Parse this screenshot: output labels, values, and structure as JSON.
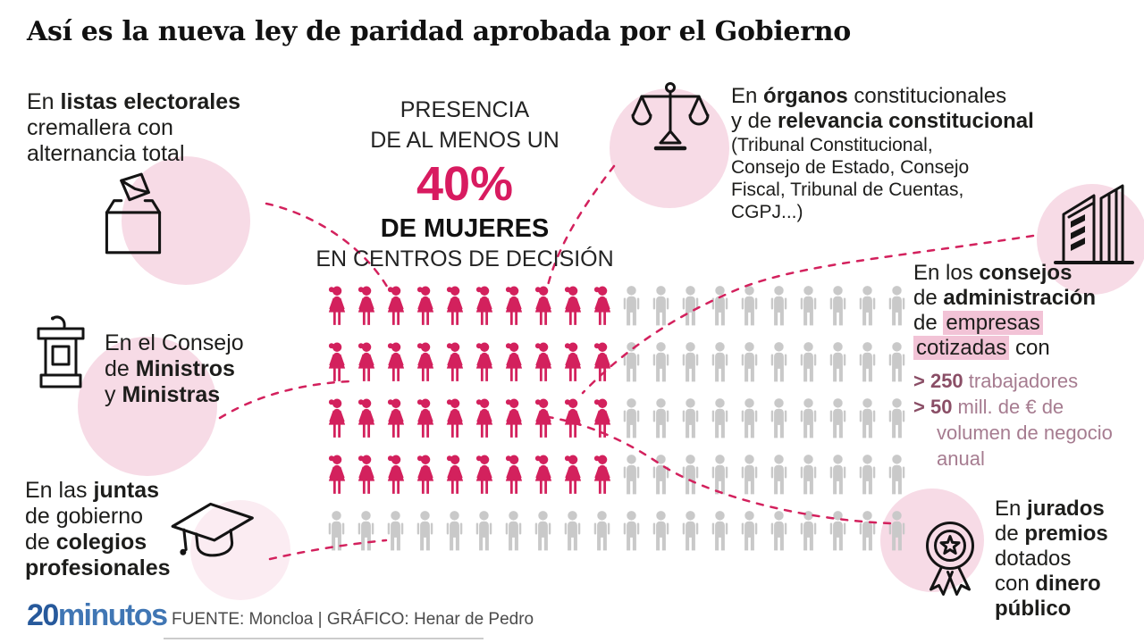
{
  "title": "Así es la nueva ley de paridad aprobada por el Gobierno",
  "center": {
    "line1": "PRESENCIA",
    "line2": "DE AL MENOS UN",
    "pct": "40%",
    "line3": "DE MUJERES",
    "line4": "EN CENTROS DE DECISIÓN"
  },
  "items": {
    "electoral": {
      "icon": "ballot-box",
      "lines": [
        {
          "seg": [
            {
              "t": "En "
            },
            {
              "t": "listas electorales",
              "c": "b"
            }
          ]
        },
        {
          "seg": [
            {
              "t": "cremallera con"
            }
          ]
        },
        {
          "seg": [
            {
              "t": "alternancia total"
            }
          ]
        }
      ]
    },
    "ministros": {
      "icon": "lectern",
      "lines": [
        {
          "seg": [
            {
              "t": "En el Consejo"
            }
          ]
        },
        {
          "seg": [
            {
              "t": "de "
            },
            {
              "t": "Ministros",
              "c": "b"
            }
          ]
        },
        {
          "seg": [
            {
              "t": "y "
            },
            {
              "t": "Ministras",
              "c": "b"
            }
          ]
        }
      ]
    },
    "juntas": {
      "icon": "graduation-cap",
      "lines": [
        {
          "seg": [
            {
              "t": "En las "
            },
            {
              "t": "juntas",
              "c": "b"
            }
          ]
        },
        {
          "seg": [
            {
              "t": "de gobierno"
            }
          ]
        },
        {
          "seg": [
            {
              "t": "de "
            },
            {
              "t": "colegios",
              "c": "b"
            }
          ]
        },
        {
          "seg": [
            {
              "t": "profesionales",
              "c": "b"
            }
          ]
        }
      ]
    },
    "organos": {
      "icon": "scales",
      "lines": [
        {
          "seg": [
            {
              "t": "En "
            },
            {
              "t": "órganos",
              "c": "b"
            },
            {
              "t": " constitucionales"
            }
          ]
        },
        {
          "seg": [
            {
              "t": "y de "
            },
            {
              "t": "relevancia constitucional",
              "c": "b"
            }
          ]
        },
        {
          "cls": "small",
          "seg": [
            {
              "t": "(Tribunal Constitucional,"
            }
          ]
        },
        {
          "cls": "small",
          "seg": [
            {
              "t": "Consejo de Estado, Consejo"
            }
          ]
        },
        {
          "cls": "small",
          "seg": [
            {
              "t": "Fiscal, Tribunal de Cuentas,"
            }
          ]
        },
        {
          "cls": "small",
          "seg": [
            {
              "t": "CGPJ...)"
            }
          ]
        }
      ]
    },
    "consejos": {
      "icon": "office-building",
      "lines": [
        {
          "seg": [
            {
              "t": "En los "
            },
            {
              "t": "consejos",
              "c": "b"
            }
          ]
        },
        {
          "seg": [
            {
              "t": "de "
            },
            {
              "t": "administración",
              "c": "b"
            }
          ]
        },
        {
          "seg": [
            {
              "t": "de "
            },
            {
              "t": "empresas",
              "c": "hl"
            }
          ]
        },
        {
          "seg": [
            {
              "t": "cotizadas",
              "c": "hl"
            },
            {
              "t": " con"
            }
          ]
        },
        {
          "cls": "bullet",
          "seg": [
            {
              "t": "> 250",
              "c": "num"
            },
            {
              "t": " trabajadores",
              "c": "mut"
            }
          ]
        },
        {
          "cls": "bullet",
          "seg": [
            {
              "t": "> 50",
              "c": "num"
            },
            {
              "t": " mill. de € de",
              "c": "mut"
            }
          ]
        },
        {
          "cls": "bullet ind",
          "seg": [
            {
              "t": "volumen de negocio",
              "c": "mut"
            }
          ]
        },
        {
          "cls": "bullet ind",
          "seg": [
            {
              "t": "anual",
              "c": "mut"
            }
          ]
        }
      ]
    },
    "jurados": {
      "icon": "award-medal",
      "lines": [
        {
          "seg": [
            {
              "t": "En "
            },
            {
              "t": "jurados",
              "c": "b"
            }
          ]
        },
        {
          "seg": [
            {
              "t": "de "
            },
            {
              "t": "premios",
              "c": "b"
            }
          ]
        },
        {
          "seg": [
            {
              "t": "dotados"
            }
          ]
        },
        {
          "seg": [
            {
              "t": "con "
            },
            {
              "t": "dinero",
              "c": "b"
            }
          ]
        },
        {
          "seg": [
            {
              "t": "público",
              "c": "b"
            }
          ]
        }
      ]
    }
  },
  "chart_data": {
    "type": "pictogram",
    "title": "Presencia de al menos un 40% de mujeres en centros de decisión",
    "rows": 5,
    "cols": 20,
    "total_icons": 100,
    "women_count": 40,
    "men_count": 60,
    "women_per_row": [
      10,
      10,
      10,
      10,
      0
    ],
    "women_color": "#d3215d",
    "men_color": "#c9c9c9"
  },
  "footer": {
    "logo_part1": "20",
    "logo_part2": "minutos",
    "credits": "FUENTE: Moncloa  |  GRÁFICO: Henar de Pedro"
  }
}
